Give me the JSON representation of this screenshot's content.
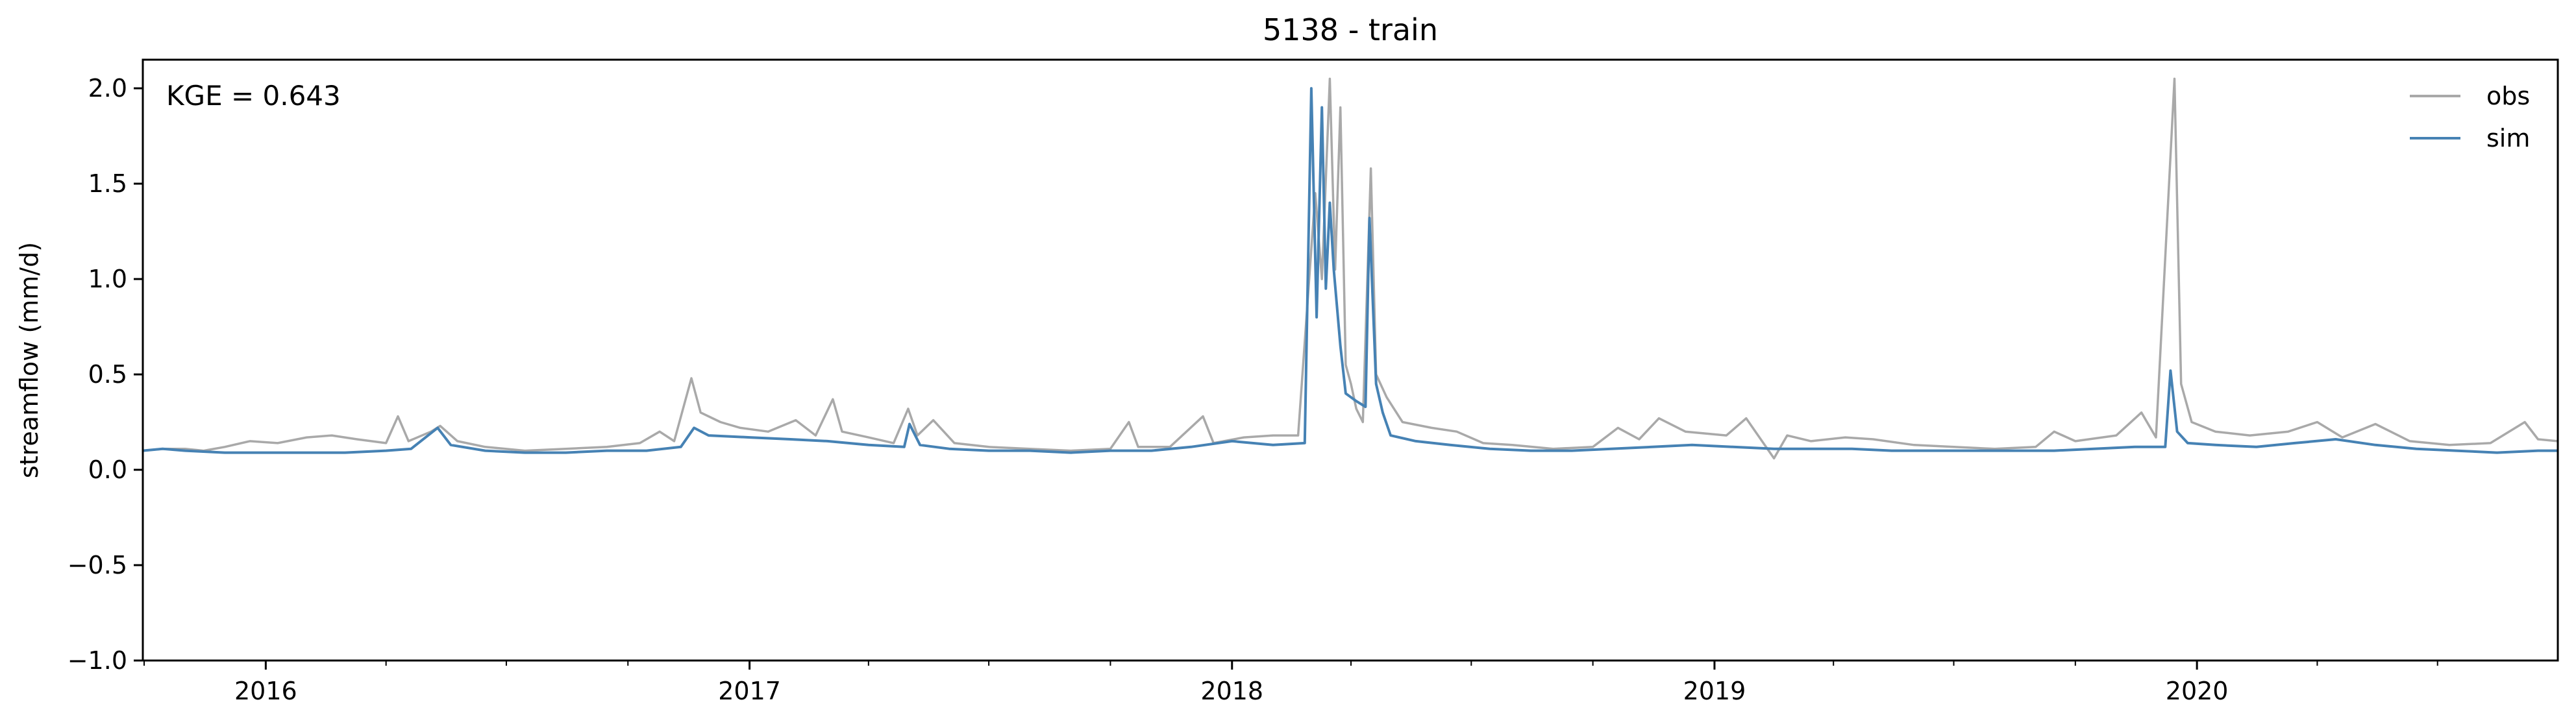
{
  "chart_data": {
    "type": "line",
    "title": "5138 - train",
    "xlabel": "",
    "ylabel": "streamflow (mm/d)",
    "annotation": "KGE = 0.643",
    "x_range": [
      "2015-09-30",
      "2020-09-30"
    ],
    "ylim": [
      -1.0,
      2.15
    ],
    "yticks": [
      -1.0,
      -0.5,
      0.0,
      0.5,
      1.0,
      1.5,
      2.0
    ],
    "ytick_labels": [
      "−1.0",
      "−0.5",
      "0.0",
      "0.5",
      "1.0",
      "1.5",
      "2.0"
    ],
    "xticks": [
      "2016-01-01",
      "2017-01-01",
      "2018-01-01",
      "2019-01-01",
      "2020-01-01"
    ],
    "xtick_labels": [
      "2016",
      "2017",
      "2018",
      "2019",
      "2020"
    ],
    "grid": false,
    "legend_position": "top-right",
    "series": [
      {
        "name": "obs",
        "color": "#a9a9a9",
        "points": [
          [
            "2015-09-30",
            0.1
          ],
          [
            "2015-10-15",
            0.11
          ],
          [
            "2015-11-01",
            0.11
          ],
          [
            "2015-11-15",
            0.1
          ],
          [
            "2015-12-01",
            0.12
          ],
          [
            "2015-12-20",
            0.15
          ],
          [
            "2016-01-10",
            0.14
          ],
          [
            "2016-02-01",
            0.17
          ],
          [
            "2016-02-20",
            0.18
          ],
          [
            "2016-03-10",
            0.16
          ],
          [
            "2016-04-01",
            0.14
          ],
          [
            "2016-04-10",
            0.28
          ],
          [
            "2016-04-18",
            0.15
          ],
          [
            "2016-05-05",
            0.2
          ],
          [
            "2016-05-12",
            0.23
          ],
          [
            "2016-05-25",
            0.15
          ],
          [
            "2016-06-15",
            0.12
          ],
          [
            "2016-07-15",
            0.1
          ],
          [
            "2016-08-15",
            0.11
          ],
          [
            "2016-09-15",
            0.12
          ],
          [
            "2016-10-10",
            0.14
          ],
          [
            "2016-10-25",
            0.2
          ],
          [
            "2016-11-05",
            0.15
          ],
          [
            "2016-11-18",
            0.48
          ],
          [
            "2016-11-25",
            0.3
          ],
          [
            "2016-12-10",
            0.25
          ],
          [
            "2016-12-25",
            0.22
          ],
          [
            "2017-01-15",
            0.2
          ],
          [
            "2017-02-05",
            0.26
          ],
          [
            "2017-02-20",
            0.18
          ],
          [
            "2017-03-05",
            0.37
          ],
          [
            "2017-03-12",
            0.2
          ],
          [
            "2017-04-01",
            0.17
          ],
          [
            "2017-04-20",
            0.14
          ],
          [
            "2017-05-01",
            0.32
          ],
          [
            "2017-05-08",
            0.18
          ],
          [
            "2017-05-20",
            0.26
          ],
          [
            "2017-06-05",
            0.14
          ],
          [
            "2017-07-01",
            0.12
          ],
          [
            "2017-08-01",
            0.11
          ],
          [
            "2017-09-01",
            0.1
          ],
          [
            "2017-10-01",
            0.11
          ],
          [
            "2017-10-15",
            0.25
          ],
          [
            "2017-10-22",
            0.12
          ],
          [
            "2017-11-15",
            0.12
          ],
          [
            "2017-12-10",
            0.28
          ],
          [
            "2017-12-18",
            0.14
          ],
          [
            "2018-01-10",
            0.17
          ],
          [
            "2018-02-01",
            0.18
          ],
          [
            "2018-02-20",
            0.18
          ],
          [
            "2018-03-05",
            1.45
          ],
          [
            "2018-03-10",
            1.0
          ],
          [
            "2018-03-16",
            2.05
          ],
          [
            "2018-03-20",
            1.05
          ],
          [
            "2018-03-24",
            1.9
          ],
          [
            "2018-03-28",
            0.55
          ],
          [
            "2018-04-01",
            0.45
          ],
          [
            "2018-04-05",
            0.32
          ],
          [
            "2018-04-10",
            0.25
          ],
          [
            "2018-04-16",
            1.58
          ],
          [
            "2018-04-20",
            0.5
          ],
          [
            "2018-04-28",
            0.38
          ],
          [
            "2018-05-10",
            0.25
          ],
          [
            "2018-06-01",
            0.22
          ],
          [
            "2018-06-20",
            0.2
          ],
          [
            "2018-07-10",
            0.14
          ],
          [
            "2018-08-01",
            0.13
          ],
          [
            "2018-09-01",
            0.11
          ],
          [
            "2018-10-01",
            0.12
          ],
          [
            "2018-10-20",
            0.22
          ],
          [
            "2018-11-05",
            0.16
          ],
          [
            "2018-11-20",
            0.27
          ],
          [
            "2018-12-10",
            0.2
          ],
          [
            "2019-01-10",
            0.18
          ],
          [
            "2019-01-25",
            0.27
          ],
          [
            "2019-02-05",
            0.16
          ],
          [
            "2019-02-15",
            0.06
          ],
          [
            "2019-02-25",
            0.18
          ],
          [
            "2019-03-15",
            0.15
          ],
          [
            "2019-04-10",
            0.17
          ],
          [
            "2019-05-01",
            0.16
          ],
          [
            "2019-06-01",
            0.13
          ],
          [
            "2019-07-01",
            0.12
          ],
          [
            "2019-08-01",
            0.11
          ],
          [
            "2019-09-01",
            0.12
          ],
          [
            "2019-09-15",
            0.2
          ],
          [
            "2019-10-01",
            0.15
          ],
          [
            "2019-11-01",
            0.18
          ],
          [
            "2019-11-20",
            0.3
          ],
          [
            "2019-12-01",
            0.17
          ],
          [
            "2019-12-15",
            2.05
          ],
          [
            "2019-12-20",
            0.45
          ],
          [
            "2019-12-28",
            0.25
          ],
          [
            "2020-01-15",
            0.2
          ],
          [
            "2020-02-10",
            0.18
          ],
          [
            "2020-03-10",
            0.2
          ],
          [
            "2020-04-01",
            0.25
          ],
          [
            "2020-04-20",
            0.17
          ],
          [
            "2020-05-15",
            0.24
          ],
          [
            "2020-06-10",
            0.15
          ],
          [
            "2020-07-10",
            0.13
          ],
          [
            "2020-08-10",
            0.14
          ],
          [
            "2020-09-05",
            0.25
          ],
          [
            "2020-09-15",
            0.16
          ],
          [
            "2020-09-30",
            0.15
          ]
        ]
      },
      {
        "name": "sim",
        "color": "#4682b4",
        "points": [
          [
            "2015-09-30",
            0.1
          ],
          [
            "2015-10-15",
            0.11
          ],
          [
            "2015-11-01",
            0.1
          ],
          [
            "2015-12-01",
            0.09
          ],
          [
            "2016-01-01",
            0.09
          ],
          [
            "2016-02-01",
            0.09
          ],
          [
            "2016-03-01",
            0.09
          ],
          [
            "2016-04-01",
            0.1
          ],
          [
            "2016-04-20",
            0.11
          ],
          [
            "2016-05-10",
            0.22
          ],
          [
            "2016-05-20",
            0.13
          ],
          [
            "2016-06-15",
            0.1
          ],
          [
            "2016-07-15",
            0.09
          ],
          [
            "2016-08-15",
            0.09
          ],
          [
            "2016-09-15",
            0.1
          ],
          [
            "2016-10-15",
            0.1
          ],
          [
            "2016-11-10",
            0.12
          ],
          [
            "2016-11-20",
            0.22
          ],
          [
            "2016-12-01",
            0.18
          ],
          [
            "2017-01-01",
            0.17
          ],
          [
            "2017-02-01",
            0.16
          ],
          [
            "2017-03-01",
            0.15
          ],
          [
            "2017-04-01",
            0.13
          ],
          [
            "2017-04-28",
            0.12
          ],
          [
            "2017-05-02",
            0.24
          ],
          [
            "2017-05-10",
            0.13
          ],
          [
            "2017-06-01",
            0.11
          ],
          [
            "2017-07-01",
            0.1
          ],
          [
            "2017-08-01",
            0.1
          ],
          [
            "2017-09-01",
            0.09
          ],
          [
            "2017-10-01",
            0.1
          ],
          [
            "2017-11-01",
            0.1
          ],
          [
            "2017-12-01",
            0.12
          ],
          [
            "2018-01-01",
            0.15
          ],
          [
            "2018-02-01",
            0.13
          ],
          [
            "2018-02-25",
            0.14
          ],
          [
            "2018-03-02",
            2.0
          ],
          [
            "2018-03-06",
            0.8
          ],
          [
            "2018-03-10",
            1.9
          ],
          [
            "2018-03-13",
            0.95
          ],
          [
            "2018-03-16",
            1.4
          ],
          [
            "2018-03-19",
            1.05
          ],
          [
            "2018-03-24",
            0.65
          ],
          [
            "2018-03-28",
            0.4
          ],
          [
            "2018-04-05",
            0.36
          ],
          [
            "2018-04-12",
            0.33
          ],
          [
            "2018-04-15",
            1.32
          ],
          [
            "2018-04-20",
            0.45
          ],
          [
            "2018-04-25",
            0.3
          ],
          [
            "2018-05-01",
            0.18
          ],
          [
            "2018-05-20",
            0.15
          ],
          [
            "2018-06-15",
            0.13
          ],
          [
            "2018-07-15",
            0.11
          ],
          [
            "2018-08-15",
            0.1
          ],
          [
            "2018-09-15",
            0.1
          ],
          [
            "2018-10-15",
            0.11
          ],
          [
            "2018-11-15",
            0.12
          ],
          [
            "2018-12-15",
            0.13
          ],
          [
            "2019-01-15",
            0.12
          ],
          [
            "2019-02-15",
            0.11
          ],
          [
            "2019-03-15",
            0.11
          ],
          [
            "2019-04-15",
            0.11
          ],
          [
            "2019-05-15",
            0.1
          ],
          [
            "2019-06-15",
            0.1
          ],
          [
            "2019-07-15",
            0.1
          ],
          [
            "2019-08-15",
            0.1
          ],
          [
            "2019-09-15",
            0.1
          ],
          [
            "2019-10-15",
            0.11
          ],
          [
            "2019-11-15",
            0.12
          ],
          [
            "2019-12-08",
            0.12
          ],
          [
            "2019-12-12",
            0.52
          ],
          [
            "2019-12-17",
            0.2
          ],
          [
            "2019-12-25",
            0.14
          ],
          [
            "2020-01-15",
            0.13
          ],
          [
            "2020-02-15",
            0.12
          ],
          [
            "2020-03-15",
            0.14
          ],
          [
            "2020-04-15",
            0.16
          ],
          [
            "2020-05-15",
            0.13
          ],
          [
            "2020-06-15",
            0.11
          ],
          [
            "2020-07-15",
            0.1
          ],
          [
            "2020-08-15",
            0.09
          ],
          [
            "2020-09-15",
            0.1
          ],
          [
            "2020-09-30",
            0.1
          ]
        ]
      }
    ]
  }
}
